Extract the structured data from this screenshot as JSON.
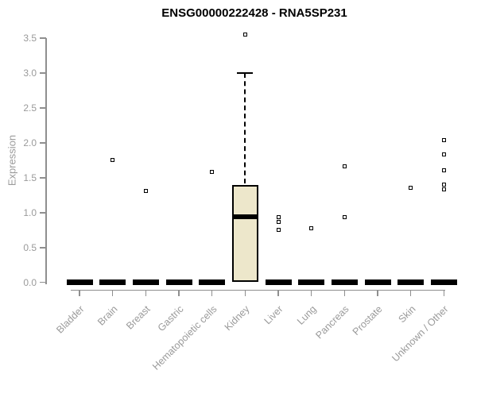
{
  "chart_data": {
    "type": "box",
    "title": "ENSG00000222428 - RNA5SP231",
    "xlabel": "",
    "ylabel": "Expression",
    "ylim": [
      0.0,
      3.5
    ],
    "yticks": [
      "0.0",
      "0.5",
      "1.0",
      "1.5",
      "2.0",
      "2.5",
      "3.0",
      "3.5"
    ],
    "grid": "off",
    "legend": "none",
    "box_fill_color": "#ede7cb",
    "box_border_color": "#000000",
    "axis_color": "#8f8f8f",
    "label_color": "#9a9a9a",
    "categories": [
      "Bladder",
      "Brain",
      "Breast",
      "Gastric",
      "Hematopoietic cells",
      "Kidney",
      "Liver",
      "Lung",
      "Pancreas",
      "Prostate",
      "Skin",
      "Unknown / Other"
    ],
    "series": [
      {
        "category": "Bladder",
        "q1": 0,
        "median": 0,
        "q3": 0,
        "whisker_low": 0,
        "whisker_high": 0,
        "outliers": []
      },
      {
        "category": "Brain",
        "q1": 0,
        "median": 0,
        "q3": 0,
        "whisker_low": 0,
        "whisker_high": 0,
        "outliers": [
          1.75
        ]
      },
      {
        "category": "Breast",
        "q1": 0,
        "median": 0,
        "q3": 0,
        "whisker_low": 0,
        "whisker_high": 0,
        "outliers": [
          1.31
        ]
      },
      {
        "category": "Gastric",
        "q1": 0,
        "median": 0,
        "q3": 0,
        "whisker_low": 0,
        "whisker_high": 0,
        "outliers": []
      },
      {
        "category": "Hematopoietic cells",
        "q1": 0,
        "median": 0,
        "q3": 0,
        "whisker_low": 0,
        "whisker_high": 0,
        "outliers": [
          1.58
        ]
      },
      {
        "category": "Kidney",
        "q1": 0.01,
        "median": 0.94,
        "q3": 1.4,
        "whisker_low": 0.01,
        "whisker_high": 3.0,
        "outliers": [
          3.55
        ]
      },
      {
        "category": "Liver",
        "q1": 0,
        "median": 0,
        "q3": 0,
        "whisker_low": 0,
        "whisker_high": 0,
        "outliers": [
          0.94,
          0.87,
          0.75
        ]
      },
      {
        "category": "Lung",
        "q1": 0,
        "median": 0,
        "q3": 0,
        "whisker_low": 0,
        "whisker_high": 0,
        "outliers": [
          0.78
        ]
      },
      {
        "category": "Pancreas",
        "q1": 0,
        "median": 0,
        "q3": 0,
        "whisker_low": 0,
        "whisker_high": 0,
        "outliers": [
          1.66,
          0.93
        ]
      },
      {
        "category": "Prostate",
        "q1": 0,
        "median": 0,
        "q3": 0,
        "whisker_low": 0,
        "whisker_high": 0,
        "outliers": []
      },
      {
        "category": "Skin",
        "q1": 0,
        "median": 0,
        "q3": 0,
        "whisker_low": 0,
        "whisker_high": 0,
        "outliers": [
          1.36
        ]
      },
      {
        "category": "Unknown / Other",
        "q1": 0,
        "median": 0,
        "q3": 0,
        "whisker_low": 0,
        "whisker_high": 0,
        "outliers": [
          2.04,
          1.83,
          1.61,
          1.4,
          1.33
        ]
      }
    ]
  }
}
